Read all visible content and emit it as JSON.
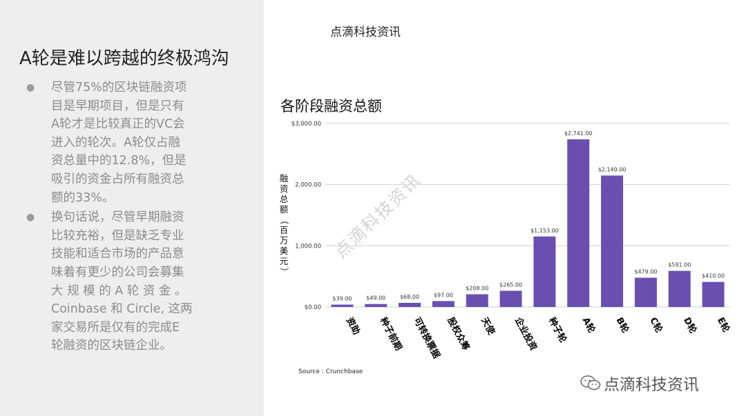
{
  "header": {
    "title": "点滴科技资讯"
  },
  "slide": {
    "title": "A轮是难以跨越的终极鸿沟",
    "bullets": [
      [
        "尽管75%的区块链融资项",
        "目是早期项目，但是只有",
        "A轮才是比较真正的VC会",
        "进入的轮次。A轮仅占融",
        "资总量中的12.8%，但是",
        "吸引的资金占所有融资总",
        "额的33%。"
      ],
      [
        "换句话说，尽管早期融资",
        "比较充裕，但是缺乏专业",
        "技能和适合市场的产品意",
        "味着有更少的公司会募集",
        "大 规 模 的 A 轮 资 金 。",
        "Coinbase 和 Circle, 这两",
        "家交易所是仅有的完成E",
        "轮融资的区块链企业。"
      ]
    ]
  },
  "chart_data": {
    "type": "bar",
    "title": "各阶段融资总额",
    "ylabel": "融资总额（百万美元）",
    "ylim": [
      0,
      3000
    ],
    "yticks": [
      0,
      1000,
      2000,
      3000
    ],
    "ytick_labels": [
      "$0.00",
      "1,000.00",
      "2,000.00",
      "$3,000.00"
    ],
    "categories": [
      "资助",
      "种子前期",
      "可转换票据",
      "股权众筹",
      "天使",
      "企业投资",
      "种子轮",
      "A轮",
      "B轮",
      "C轮",
      "D轮",
      "E轮"
    ],
    "values": [
      39,
      49,
      68,
      97,
      208,
      265,
      1153,
      2741,
      2149,
      479,
      591,
      410
    ],
    "value_labels": [
      "$39.00",
      "$49.00",
      "$68.00",
      "$97.00",
      "$208.00",
      "$265.00",
      "$1,153.00",
      "$2,741.00",
      "$2,149.00",
      "$479.00",
      "$591.00",
      "$410.00"
    ],
    "bar_color": "#6a4fb0",
    "grid": true,
    "legend": "none"
  },
  "source": "Source : Crunchbase",
  "watermark": "点滴科技资讯",
  "brand": {
    "name": "点滴科技资讯",
    "icon": "wechat-icon"
  }
}
